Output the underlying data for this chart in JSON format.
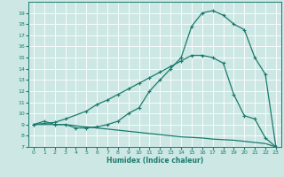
{
  "background_color": "#cde8e4",
  "grid_color": "#ffffff",
  "line_color": "#1a7a6e",
  "xlabel": "Humidex (Indice chaleur)",
  "xlim": [
    -0.5,
    23.5
  ],
  "ylim": [
    7,
    20
  ],
  "yticks": [
    7,
    8,
    9,
    10,
    11,
    12,
    13,
    14,
    15,
    16,
    17,
    18,
    19
  ],
  "xticks": [
    0,
    1,
    2,
    3,
    4,
    5,
    6,
    7,
    8,
    9,
    10,
    11,
    12,
    13,
    14,
    15,
    16,
    17,
    18,
    19,
    20,
    21,
    22,
    23
  ],
  "line1_x": [
    0,
    1,
    2,
    3,
    4,
    5,
    6,
    7,
    8,
    9,
    10,
    11,
    12,
    13,
    14,
    15,
    16,
    17,
    18,
    19,
    20,
    21,
    22,
    23
  ],
  "line1_y": [
    9.0,
    9.3,
    9.0,
    9.0,
    8.7,
    8.7,
    8.8,
    9.0,
    9.3,
    10.0,
    10.5,
    12.0,
    13.0,
    14.0,
    15.0,
    17.8,
    19.0,
    19.2,
    18.8,
    18.0,
    17.5,
    15.0,
    13.5,
    7.0
  ],
  "line2_x": [
    0,
    2,
    3,
    5,
    6,
    7,
    8,
    9,
    10,
    11,
    12,
    13,
    14,
    15,
    16,
    17,
    18,
    19,
    20,
    21,
    22,
    23
  ],
  "line2_y": [
    9.0,
    9.2,
    9.5,
    10.2,
    10.8,
    11.2,
    11.7,
    12.2,
    12.7,
    13.2,
    13.7,
    14.2,
    14.7,
    15.2,
    15.2,
    15.0,
    14.5,
    11.7,
    9.8,
    9.5,
    7.8,
    7.0
  ],
  "line3_x": [
    0,
    1,
    2,
    3,
    4,
    5,
    6,
    7,
    8,
    9,
    10,
    11,
    12,
    13,
    14,
    15,
    16,
    17,
    18,
    19,
    20,
    21,
    22,
    23
  ],
  "line3_y": [
    9.0,
    9.0,
    9.0,
    9.0,
    8.9,
    8.8,
    8.7,
    8.6,
    8.5,
    8.4,
    8.3,
    8.2,
    8.1,
    8.0,
    7.9,
    7.85,
    7.8,
    7.7,
    7.65,
    7.6,
    7.5,
    7.4,
    7.3,
    7.0
  ],
  "marker": "+",
  "markersize": 3,
  "linewidth": 0.9
}
